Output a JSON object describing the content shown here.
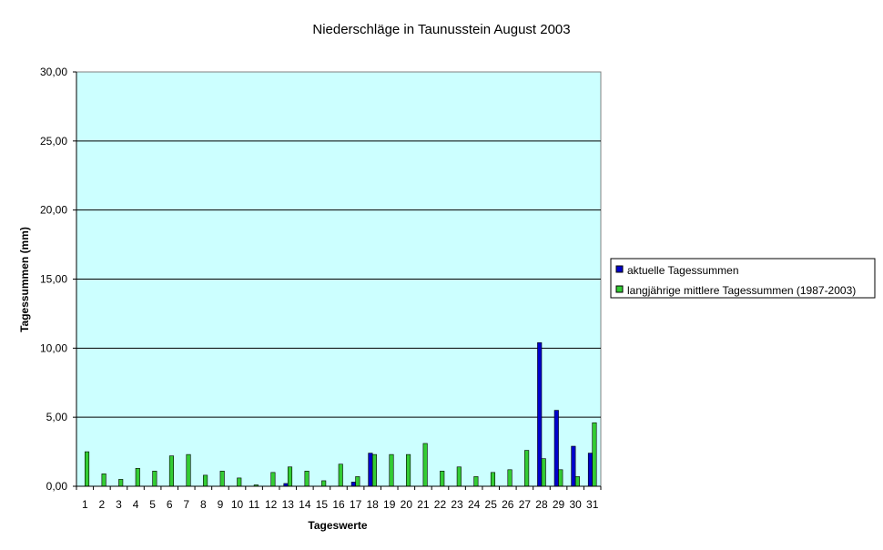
{
  "chart_data": {
    "type": "bar",
    "title": "Niederschläge in Taunusstein  August  2003",
    "xlabel": "Tageswerte",
    "ylabel": "Tagessummen (mm)",
    "ylim": [
      0,
      30
    ],
    "yticks": [
      "0,00",
      "5,00",
      "10,00",
      "15,00",
      "20,00",
      "25,00",
      "30,00"
    ],
    "categories": [
      "1",
      "2",
      "3",
      "4",
      "5",
      "6",
      "7",
      "8",
      "9",
      "10",
      "11",
      "12",
      "13",
      "14",
      "15",
      "16",
      "17",
      "18",
      "19",
      "20",
      "21",
      "22",
      "23",
      "24",
      "25",
      "26",
      "27",
      "28",
      "29",
      "30",
      "31"
    ],
    "grid": true,
    "legend_position": "right",
    "plot_background": "#ccffff",
    "series": [
      {
        "name": "aktuelle Tagessummen",
        "color": "#0000cc",
        "values": [
          0,
          0,
          0,
          0,
          0,
          0,
          0,
          0,
          0,
          0,
          0,
          0,
          0.2,
          0,
          0,
          0,
          0.3,
          2.4,
          0,
          0,
          0,
          0,
          0,
          0,
          0,
          0,
          0,
          10.4,
          5.5,
          2.9,
          2.4
        ]
      },
      {
        "name": "langjährige mittlere Tagessummen (1987-2003)",
        "color": "#33cc33",
        "values": [
          2.5,
          0.9,
          0.5,
          1.3,
          1.1,
          2.2,
          2.3,
          0.8,
          1.1,
          0.6,
          0.1,
          1.0,
          1.4,
          1.1,
          0.4,
          1.6,
          0.7,
          2.3,
          2.3,
          2.3,
          3.1,
          1.1,
          1.4,
          0.7,
          1.0,
          1.2,
          2.6,
          2.0,
          1.2,
          0.7,
          4.6
        ]
      }
    ]
  }
}
